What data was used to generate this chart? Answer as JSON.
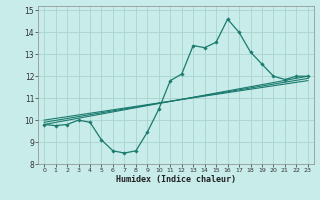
{
  "title": "",
  "xlabel": "Humidex (Indice chaleur)",
  "ylabel": "",
  "bg_color": "#c8ecea",
  "grid_color": "#aad4d0",
  "line_color": "#1a7a6e",
  "xlim": [
    -0.5,
    23.5
  ],
  "ylim": [
    8,
    15.2
  ],
  "yticks": [
    8,
    9,
    10,
    11,
    12,
    13,
    14,
    15
  ],
  "xticks": [
    0,
    1,
    2,
    3,
    4,
    5,
    6,
    7,
    8,
    9,
    10,
    11,
    12,
    13,
    14,
    15,
    16,
    17,
    18,
    19,
    20,
    21,
    22,
    23
  ],
  "main_x": [
    0,
    1,
    2,
    3,
    4,
    5,
    6,
    7,
    8,
    9,
    10,
    11,
    12,
    13,
    14,
    15,
    16,
    17,
    18,
    19,
    20,
    21,
    22,
    23
  ],
  "main_y": [
    9.8,
    9.75,
    9.8,
    10.0,
    9.9,
    9.1,
    8.6,
    8.5,
    8.6,
    9.45,
    10.5,
    11.8,
    12.1,
    13.4,
    13.3,
    13.55,
    14.6,
    14.0,
    13.1,
    12.55,
    12.0,
    11.85,
    12.0,
    12.0
  ],
  "line1_x": [
    0,
    23
  ],
  "line1_y": [
    9.8,
    12.0
  ],
  "line2_x": [
    0,
    23
  ],
  "line2_y": [
    9.9,
    11.9
  ],
  "line3_x": [
    0,
    23
  ],
  "line3_y": [
    10.0,
    11.8
  ]
}
